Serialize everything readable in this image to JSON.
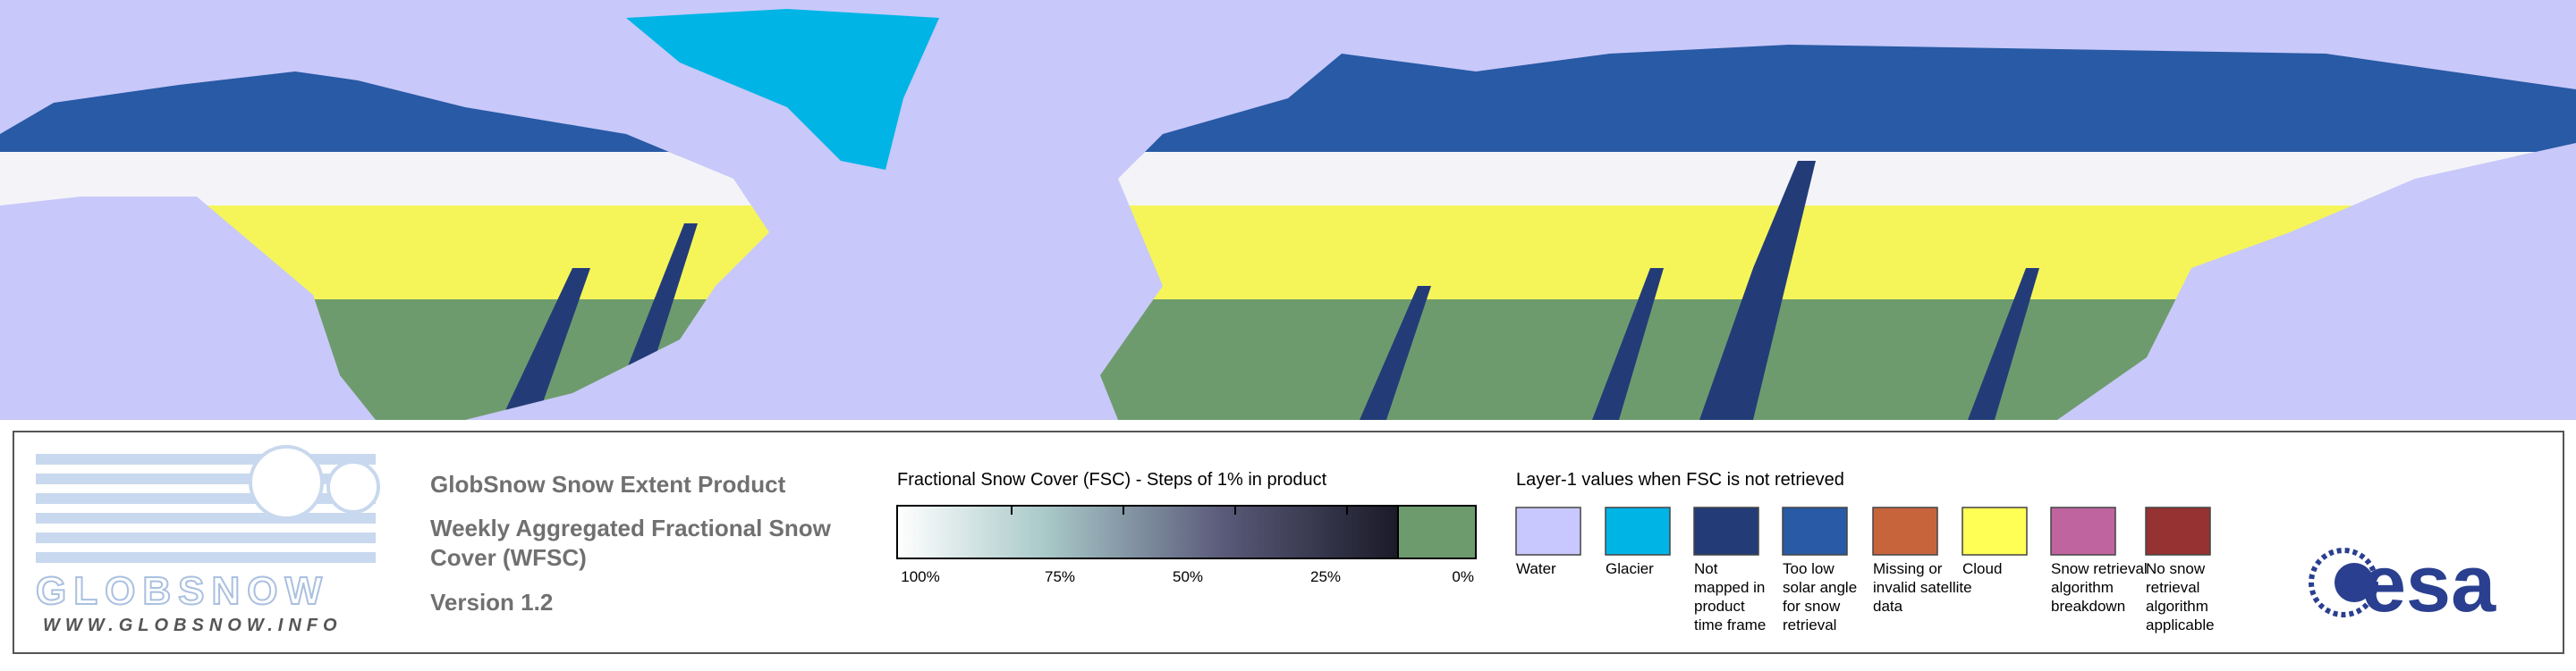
{
  "logo": {
    "name": "GLOBSNOW",
    "url": "WWW.GLOBSNOW.INFO"
  },
  "product": {
    "title": "GlobSnow Snow Extent Product",
    "subtitle": [
      "Weekly Aggregated Fractional Snow",
      "Cover (WFSC)"
    ],
    "version": "Version 1.2"
  },
  "fsc_legend": {
    "title": "Fractional Snow Cover (FSC) - Steps of 1% in product",
    "labels": [
      "100%",
      "75%",
      "50%",
      "25%",
      "0%"
    ],
    "zero_color": "#6e9b6e"
  },
  "layer1_legend": {
    "title": "Layer-1 values when FSC is not retrieved",
    "items": [
      {
        "label": [
          "Water"
        ],
        "color": "#c8c8ff"
      },
      {
        "label": [
          "Glacier"
        ],
        "color": "#00b4e6"
      },
      {
        "label": [
          "Not",
          "mapped in",
          "product",
          "time frame"
        ],
        "color": "#233c78"
      },
      {
        "label": [
          "Too low",
          "solar angle",
          "for snow",
          "retrieval"
        ],
        "color": "#285aa5"
      },
      {
        "label": [
          "Missing or",
          "invalid satellite",
          "data"
        ],
        "color": "#c8643c"
      },
      {
        "label": [
          "Cloud"
        ],
        "color": "#ffff55"
      },
      {
        "label": [
          "Snow retrieval",
          "algorithm",
          "breakdown"
        ],
        "color": "#c064a0"
      },
      {
        "label": [
          "No snow",
          "retrieval",
          "algorithm",
          "applicable"
        ],
        "color": "#963232"
      }
    ]
  },
  "esa_logo": "esa"
}
